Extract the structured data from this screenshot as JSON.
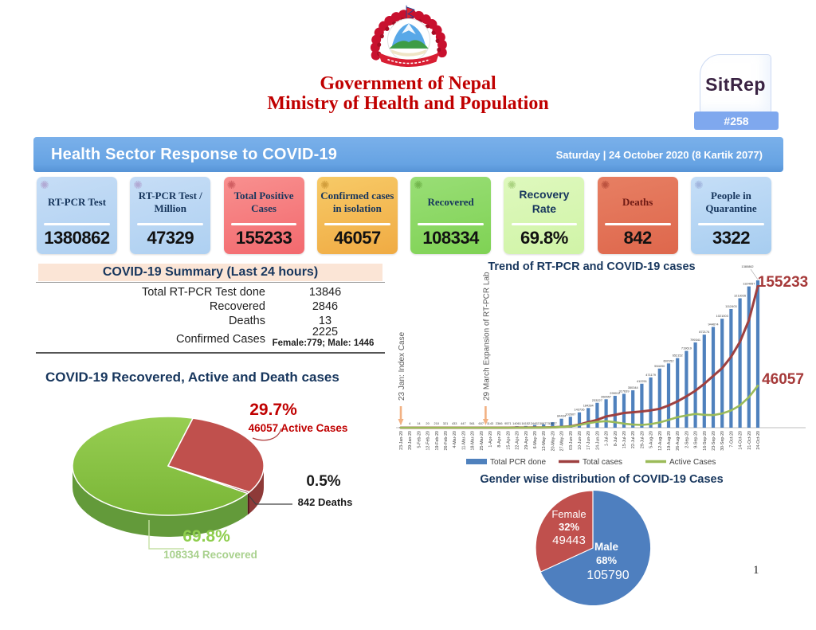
{
  "header": {
    "government": "Government of Nepal",
    "ministry": "Ministry of Health and Population",
    "sitrep_label": "SitRep",
    "sitrep_number": "#258"
  },
  "banner": {
    "title": "Health Sector Response to COVID-19",
    "date": "Saturday | 24 October 2020 (8 Kartik 2077)"
  },
  "stat_cards": [
    {
      "title": "RT-PCR Test",
      "value": "1380862"
    },
    {
      "title": "RT-PCR Test / Million",
      "value": "47329"
    },
    {
      "title": "Total Positive Cases",
      "value": "155233"
    },
    {
      "title": "Confirmed cases in isolation",
      "value": "46057"
    },
    {
      "title": "Recovered",
      "value": "108334"
    },
    {
      "title": "Recovery Rate",
      "value": "69.8%"
    },
    {
      "title": "Deaths",
      "value": "842"
    },
    {
      "title": "People in Quarantine",
      "value": "3322"
    }
  ],
  "summary": {
    "title": "COVID-19 Summary (Last 24 hours)",
    "rows": [
      {
        "label": "Total RT-PCR Test done",
        "value": "13846"
      },
      {
        "label": "Recovered",
        "value": "2846"
      },
      {
        "label": "Deaths",
        "value": "13"
      },
      {
        "label": "Confirmed Cases",
        "value": "2225",
        "sub": "Female:779; Male: 1446"
      }
    ]
  },
  "pie_section": {
    "title": "COVID-19 Recovered, Active and Death cases",
    "labels": {
      "active_pct": "29.7%",
      "active_text": "46057 Active Cases",
      "deaths_pct": "0.5%",
      "deaths_text": "842 Deaths",
      "recovered_pct": "69.8%",
      "recovered_text": "108334 Recovered"
    }
  },
  "trend_section": {
    "title": "Trend of RT-PCR and COVID-19 cases",
    "end_label_total": "155233",
    "end_label_active": "46057"
  },
  "gender_section": {
    "title": "Gender wise distribution of COVID-19 Cases",
    "female_label": "Female",
    "female_pct": "32%",
    "female_value": "49443",
    "male_label": "Male",
    "male_pct": "68%",
    "male_value": "105790"
  },
  "page_number": "1",
  "colors": {
    "banner_blue": "#66a3e3",
    "navy": "#17365d",
    "accent_red": "#c00000",
    "bar_blue": "#4f81bd",
    "line_red": "#9e4040",
    "line_green": "#9bbb59",
    "pie_green": "#8dc63f",
    "pie_red": "#c0504d",
    "pie_maroon": "#7b1f26"
  },
  "chart_data": [
    {
      "type": "pie",
      "title": "COVID-19 Recovered, Active and Death cases",
      "style": "3d",
      "slices": [
        {
          "label": "Recovered",
          "value": 108334,
          "pct": 69.8,
          "color": "#8dc63f"
        },
        {
          "label": "Active Cases",
          "value": 46057,
          "pct": 29.7,
          "color": "#c0504d"
        },
        {
          "label": "Deaths",
          "value": 842,
          "pct": 0.5,
          "color": "#7b1f26"
        }
      ]
    },
    {
      "type": "bar",
      "title": "Trend of RT-PCR and COVID-19 cases",
      "note": "combo chart: bars with two overlay lines; weekly cumulative values, smaller mid-series values estimated from bar heights",
      "categories": [
        "23-Jan-20",
        "29-Jan-20",
        "5-Feb-20",
        "12-Feb-20",
        "19-Feb-20",
        "26-Feb-20",
        "4-Mar-20",
        "11-Mar-20",
        "18-Mar-20",
        "25-Mar-20",
        "1-Apr-20",
        "8-Apr-20",
        "15-Apr-20",
        "22-Apr-20",
        "29-Apr-20",
        "6-May-20",
        "13-May-20",
        "20-May-20",
        "27-May-20",
        "03-Jun-20",
        "10-Jun-20",
        "17-Jun-20",
        "24-Jun-20",
        "1-Jul-20",
        "8-Jul-20",
        "15-Jul-20",
        "22-Jul-20",
        "29-Jul-20",
        "5-Aug-20",
        "12-Aug-20",
        "19-Aug-20",
        "26-Aug-20",
        "2-Sep-20",
        "9-Sep-20",
        "16-Sep-20",
        "23-Sep-20",
        "30-Sep-20",
        "7-Oct-20",
        "14-Oct-20",
        "21-Oct-20",
        "24-Oct-20"
      ],
      "series": [
        {
          "name": "Total PCR done",
          "type": "bar",
          "color": "#4f81bd",
          "values": [
            1,
            4,
            14,
            20,
            210,
            321,
            433,
            447,
            561,
            607,
            1143,
            2366,
            9571,
            14061,
            16152,
            24402,
            30677,
            51677,
            84434,
            102607,
            143736,
            184284,
            233227,
            266557,
            299012,
            317639,
            350344,
            412251,
            471179,
            554200,
            602152,
            652152,
            719619,
            799341,
            872174,
            944674,
            1021003,
            1112403,
            1213026,
            1324057,
            1380862
          ]
        },
        {
          "name": "Total  cases",
          "type": "line",
          "color": "#9e4040",
          "values": [
            1,
            1,
            1,
            1,
            1,
            1,
            1,
            2,
            2,
            3,
            5,
            9,
            16,
            45,
            54,
            134,
            245,
            427,
            886,
            1572,
            3448,
            6211,
            8605,
            12309,
            14046,
            16168,
            16945,
            17844,
            19063,
            20750,
            24432,
            28938,
            34418,
            40529,
            48138,
            56788,
            65276,
            77817,
            94253,
            117996,
            155233
          ]
        },
        {
          "name": "Active Cases",
          "type": "line",
          "color": "#9bbb59",
          "values": [
            1,
            1,
            1,
            1,
            1,
            1,
            1,
            2,
            2,
            3,
            5,
            9,
            15,
            42,
            50,
            120,
            220,
            380,
            800,
            1400,
            3000,
            5000,
            6500,
            7200,
            6000,
            4500,
            3400,
            3100,
            3900,
            5800,
            8500,
            11500,
            13500,
            15100,
            14200,
            13800,
            15600,
            18900,
            24500,
            33500,
            46057
          ]
        }
      ],
      "annotations": [
        {
          "text": "23 Jan: Index Case",
          "index": 0
        },
        {
          "text": "29 March Expansion of RT-PCR Lab",
          "index": 9.5
        }
      ],
      "end_labels": {
        "total_cases": 155233,
        "active_cases": 46057
      },
      "axis": {
        "bar_max": 1380862,
        "line_max": 160000,
        "grid": false,
        "legend_position": "bottom"
      }
    },
    {
      "type": "pie",
      "title": "Gender wise distribution of COVID-19 Cases",
      "slices": [
        {
          "label": "Male",
          "value": 105790,
          "pct": 68,
          "color": "#4e7fbf"
        },
        {
          "label": "Female",
          "value": 49443,
          "pct": 32,
          "color": "#c0504d"
        }
      ]
    }
  ]
}
